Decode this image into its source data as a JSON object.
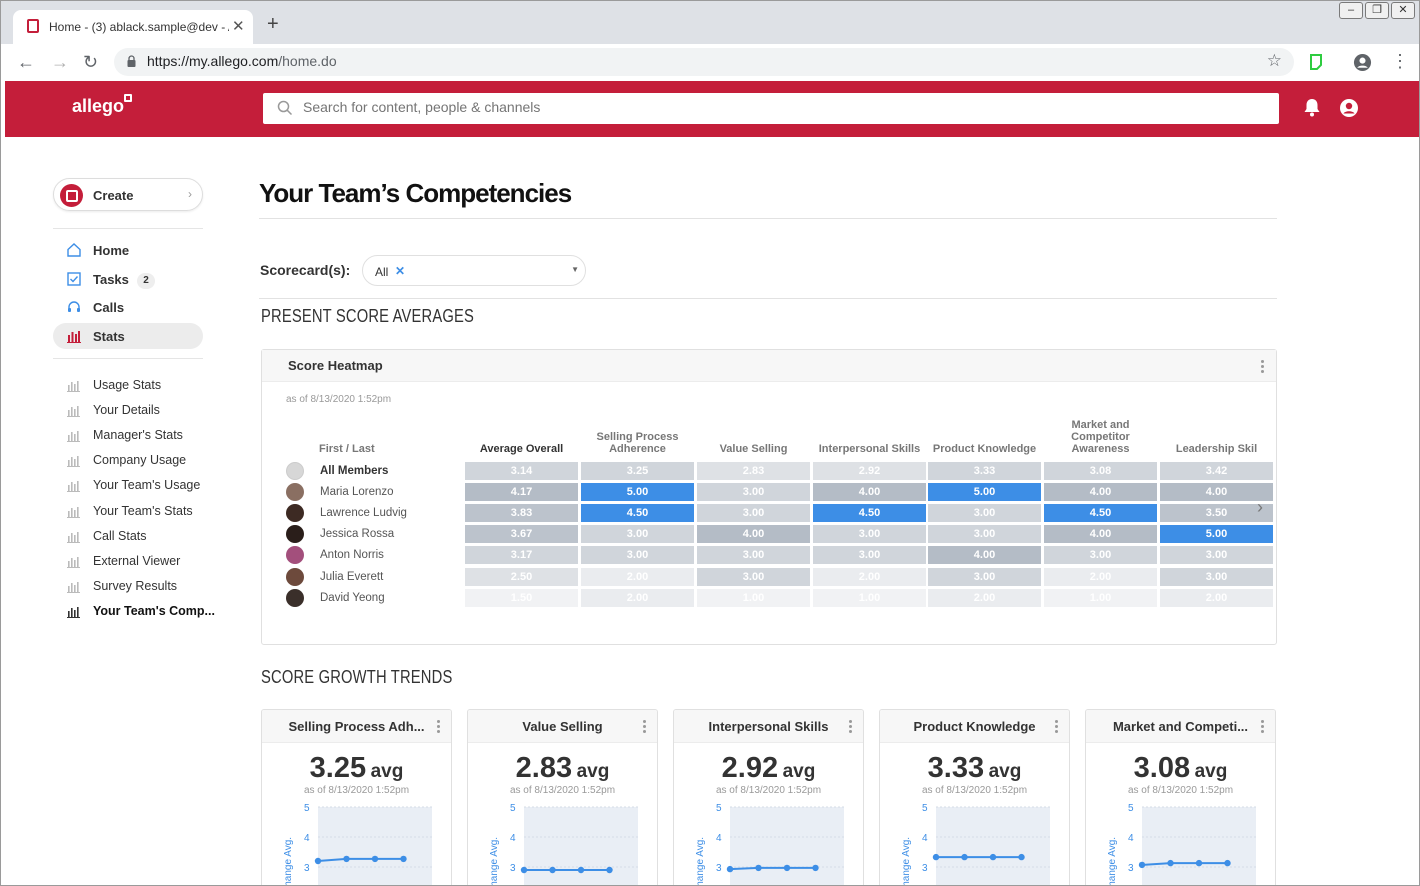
{
  "browser": {
    "tab_title": "Home - (3) ablack.sample@dev - Al",
    "url_host": "https://my.allego.com",
    "url_path": "/home.do"
  },
  "app": {
    "logo": "allego",
    "search_placeholder": "Search for content, people & channels"
  },
  "sidebar": {
    "create_label": "Create",
    "nav": [
      {
        "label": "Home",
        "icon": "home-icon"
      },
      {
        "label": "Tasks",
        "icon": "checkbox-icon",
        "badge": "2"
      },
      {
        "label": "Calls",
        "icon": "headset-icon"
      },
      {
        "label": "Stats",
        "icon": "bar-chart-icon"
      }
    ],
    "sub": [
      "Usage Stats",
      "Your Details",
      "Manager's Stats",
      "Company Usage",
      "Your Team's Usage",
      "Your Team's Stats",
      "Call Stats",
      "External Viewer",
      "Survey Results",
      "Your Team's Comp..."
    ]
  },
  "main": {
    "title": "Your Team’s Competencies",
    "scorecard_label": "Scorecard(s):",
    "scorecard_value": "All",
    "section_present": "PRESENT SCORE AVERAGES",
    "section_growth": "SCORE GROWTH TRENDS"
  },
  "heatmap": {
    "title": "Score Heatmap",
    "as_of": "as of 8/13/2020 1:52pm",
    "name_header": "First / Last",
    "columns": [
      "Average Overall",
      "Selling Process Adherence",
      "Value Selling",
      "Interpersonal Skills",
      "Product Knowledge",
      "Market and Competitor Awareness",
      "Leadership Skil"
    ],
    "rows": [
      {
        "name": "All Members",
        "values": [
          "3.14",
          "3.25",
          "2.83",
          "2.92",
          "3.33",
          "3.08",
          "3.42"
        ]
      },
      {
        "name": "Maria Lorenzo",
        "values": [
          "4.17",
          "5.00",
          "3.00",
          "4.00",
          "5.00",
          "4.00",
          "4.00"
        ]
      },
      {
        "name": "Lawrence Ludvig",
        "values": [
          "3.83",
          "4.50",
          "3.00",
          "4.50",
          "3.00",
          "4.50",
          "3.50"
        ]
      },
      {
        "name": "Jessica Rossa",
        "values": [
          "3.67",
          "3.00",
          "4.00",
          "3.00",
          "3.00",
          "4.00",
          "5.00"
        ]
      },
      {
        "name": "Anton Norris",
        "values": [
          "3.17",
          "3.00",
          "3.00",
          "3.00",
          "4.00",
          "3.00",
          "3.00"
        ]
      },
      {
        "name": "Julia Everett",
        "values": [
          "2.50",
          "2.00",
          "3.00",
          "2.00",
          "3.00",
          "2.00",
          "3.00"
        ]
      },
      {
        "name": "David Yeong",
        "values": [
          "1.50",
          "2.00",
          "1.00",
          "1.00",
          "2.00",
          "1.00",
          "2.00"
        ]
      }
    ]
  },
  "trends": [
    {
      "title": "Selling Process Adh...",
      "avg": "3.25",
      "unit": "avg",
      "as_of": "as of 8/13/2020 1:52pm",
      "yaxis": "Change Avg.",
      "ticks": [
        "5",
        "4",
        "3"
      ],
      "values": [
        3.2,
        3.27,
        3.27,
        3.27
      ]
    },
    {
      "title": "Value Selling",
      "avg": "2.83",
      "unit": "avg",
      "as_of": "as of 8/13/2020 1:52pm",
      "yaxis": "Change Avg.",
      "ticks": [
        "5",
        "4",
        "3"
      ],
      "values": [
        2.9,
        2.9,
        2.9,
        2.9
      ]
    },
    {
      "title": "Interpersonal Skills",
      "avg": "2.92",
      "unit": "avg",
      "as_of": "as of 8/13/2020 1:52pm",
      "yaxis": "Change Avg.",
      "ticks": [
        "5",
        "4",
        "3"
      ],
      "values": [
        2.93,
        2.97,
        2.97,
        2.97
      ]
    },
    {
      "title": "Product Knowledge",
      "avg": "3.33",
      "unit": "avg",
      "as_of": "as of 8/13/2020 1:52pm",
      "yaxis": "Change Avg.",
      "ticks": [
        "5",
        "4",
        "3"
      ],
      "values": [
        3.33,
        3.33,
        3.33,
        3.33
      ]
    },
    {
      "title": "Market and Competi...",
      "avg": "3.08",
      "unit": "avg",
      "as_of": "as of 8/13/2020 1:52pm",
      "yaxis": "Change Avg.",
      "ticks": [
        "5",
        "4",
        "3"
      ],
      "values": [
        3.07,
        3.13,
        3.13,
        3.13
      ]
    }
  ],
  "colors": {
    "brand": "#c41e3a",
    "heat_max": "#3d8ee6"
  }
}
